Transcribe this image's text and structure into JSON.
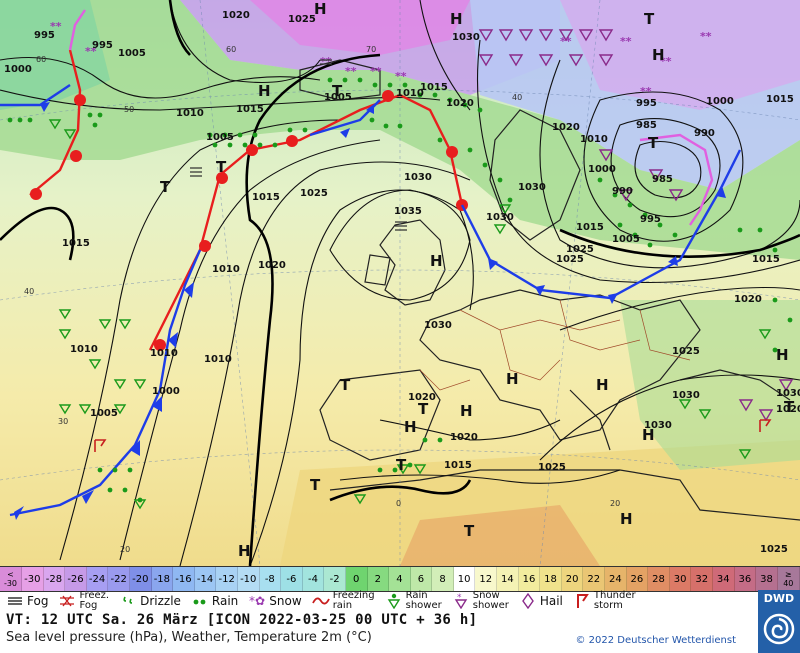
{
  "valid_time": "VT: 12 UTC Sa.  26 März [ICON 2022-03-25  00 UTC + 36 h]",
  "description": "Sea level pressure (hPa), Weather, Temperature 2m (°C)",
  "copyright": "© 2022 Deutscher Wetterdienst",
  "logo_text": "DWD",
  "temperature_scale": [
    {
      "label": "<\n-30",
      "color": "#d98cd9"
    },
    {
      "label": "-30",
      "color": "#e6a0e6"
    },
    {
      "label": "-28",
      "color": "#d9a6ee"
    },
    {
      "label": "-26",
      "color": "#c69ae8"
    },
    {
      "label": "-24",
      "color": "#a79ef2"
    },
    {
      "label": "-22",
      "color": "#9a9aee"
    },
    {
      "label": "-20",
      "color": "#7f8fe8"
    },
    {
      "label": "-18",
      "color": "#8aa6ee"
    },
    {
      "label": "-16",
      "color": "#8fb8f2"
    },
    {
      "label": "-14",
      "color": "#9cc6f4"
    },
    {
      "label": "-12",
      "color": "#a9d2f4"
    },
    {
      "label": "-10",
      "color": "#b4dcf4"
    },
    {
      "label": "-8",
      "color": "#a8dff0"
    },
    {
      "label": "-6",
      "color": "#9ee0e6"
    },
    {
      "label": "-4",
      "color": "#a2e4de"
    },
    {
      "label": "-2",
      "color": "#abe8d2"
    },
    {
      "label": "0",
      "color": "#6fd46f"
    },
    {
      "label": "2",
      "color": "#86da80"
    },
    {
      "label": "4",
      "color": "#a4e296"
    },
    {
      "label": "6",
      "color": "#bee8a8"
    },
    {
      "label": "8",
      "color": "#d2eeb8"
    },
    {
      "label": "10",
      "color": "#ffffff"
    },
    {
      "label": "12",
      "color": "#f8f8cc"
    },
    {
      "label": "14",
      "color": "#f4f2b4"
    },
    {
      "label": "16",
      "color": "#f2ec9e"
    },
    {
      "label": "18",
      "color": "#f0e28c"
    },
    {
      "label": "20",
      "color": "#eed57e"
    },
    {
      "label": "22",
      "color": "#eac674"
    },
    {
      "label": "24",
      "color": "#e6b46a"
    },
    {
      "label": "26",
      "color": "#e4a264"
    },
    {
      "label": "28",
      "color": "#e08e64"
    },
    {
      "label": "30",
      "color": "#dc7a66"
    },
    {
      "label": "32",
      "color": "#d6706a"
    },
    {
      "label": "34",
      "color": "#cf6a78"
    },
    {
      "label": "36",
      "color": "#c46c86"
    },
    {
      "label": "38",
      "color": "#b57090"
    },
    {
      "label": "≥\n40",
      "color": "#a7789a"
    }
  ],
  "legend": {
    "fog": "Fog",
    "freezing_fog": "Freez.\nFog",
    "drizzle": "Drizzle",
    "rain": "Rain",
    "snow": "Snow",
    "freezing_rain": "Freezing\nrain",
    "rain_shower": "Rain\nshower",
    "snow_shower": "Snow\nshower",
    "hail": "Hail",
    "thunderstorm": "Thunder\nstorm"
  },
  "map": {
    "pressure_labels": [
      "1020",
      "1025",
      "1030",
      "995",
      "995",
      "1005",
      "1000",
      "1005",
      "1010",
      "1015",
      "1005",
      "1010",
      "1015",
      "1010",
      "1015",
      "1020",
      "1030",
      "1030",
      "1025",
      "1035",
      "1020",
      "1015",
      "1010",
      "1010",
      "1010",
      "1005",
      "1000",
      "1030",
      "1020",
      "1020",
      "1015",
      "1025",
      "1030",
      "1030",
      "1015",
      "1020",
      "1025",
      "995",
      "1000",
      "985",
      "990",
      "985",
      "990",
      "1000",
      "995",
      "1005",
      "1015",
      "1020",
      "1025",
      "1030",
      "1015",
      "1030",
      "1020",
      "1025",
      "1010",
      "1025"
    ],
    "highs": [
      "H",
      "H",
      "H",
      "H",
      "H",
      "H",
      "H",
      "H",
      "H",
      "H",
      "H",
      "H",
      "H"
    ],
    "lows": [
      "T",
      "T",
      "T",
      "T",
      "T",
      "T",
      "T",
      "T",
      "T",
      "T",
      "T"
    ],
    "isotherm_labels": [
      "60",
      "60",
      "50",
      "40",
      "30",
      "20",
      "20",
      "0",
      "40",
      "70"
    ]
  }
}
